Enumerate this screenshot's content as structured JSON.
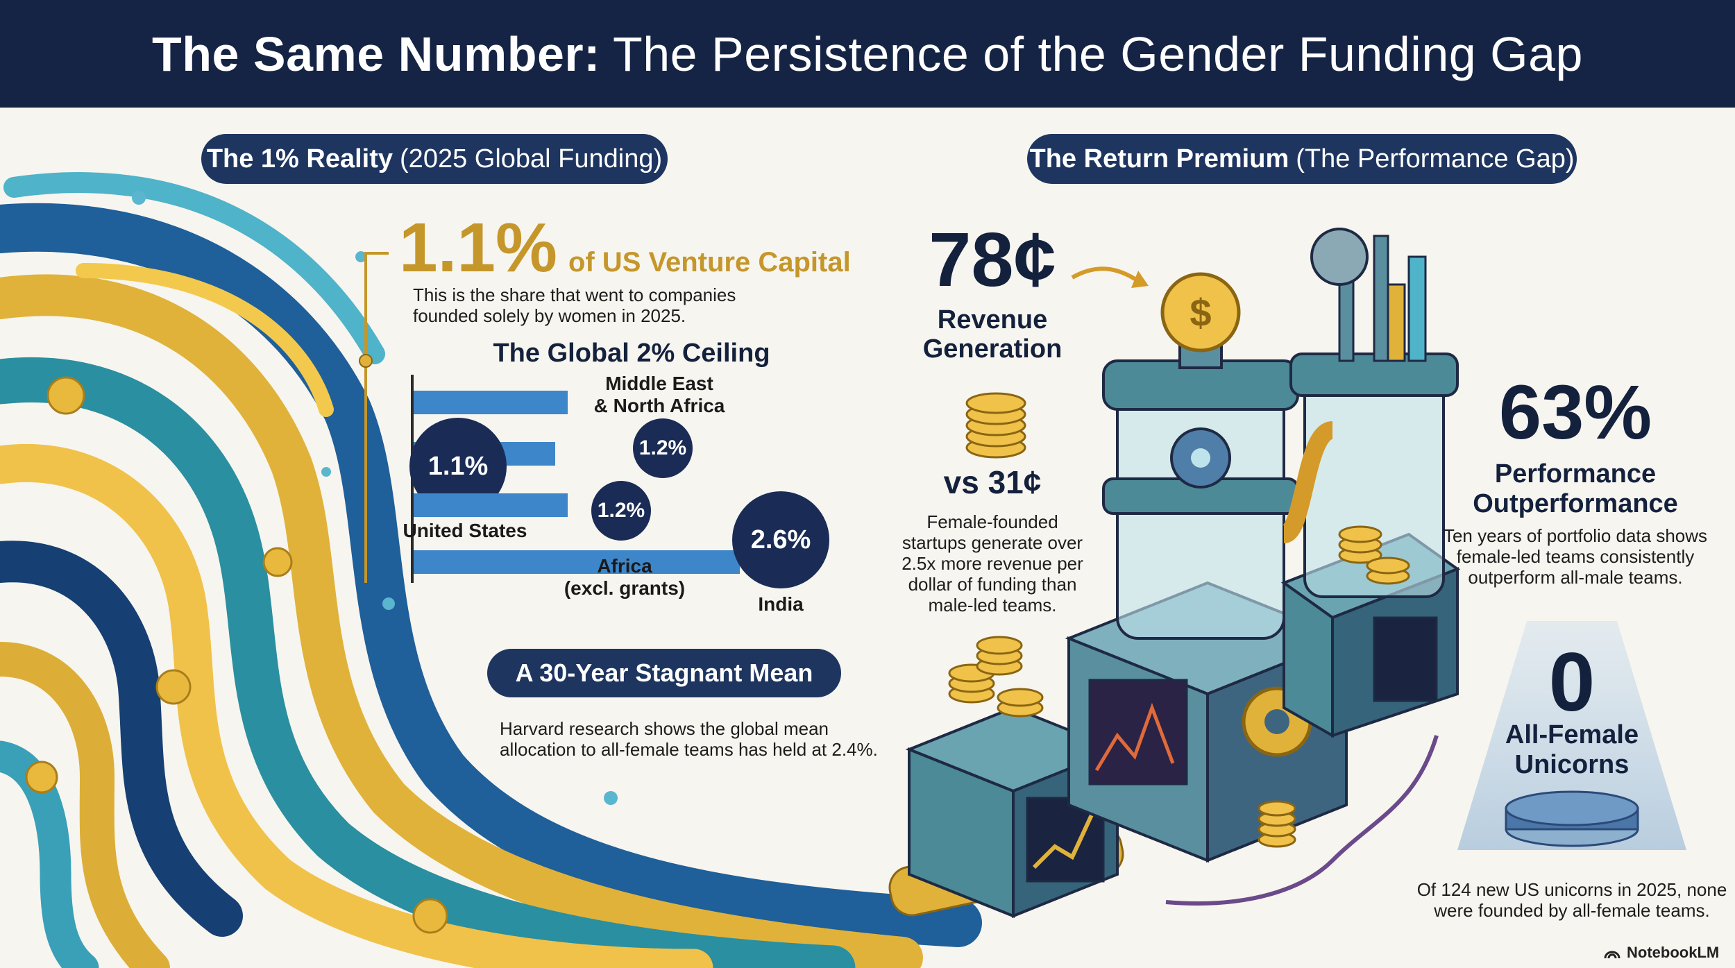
{
  "header": {
    "title_bold": "The Same Number:",
    "title_rest": "The Persistence of the Gender Funding Gap"
  },
  "left": {
    "pill_bold": "The 1% Reality",
    "pill_rest": "(2025 Global Funding)",
    "big_stat": "1.1%",
    "big_stat_label": "of US Venture Capital",
    "big_stat_desc_1": "This is the share that went to companies",
    "big_stat_desc_2": "founded solely by women in 2025.",
    "ceiling_title": "The Global 2% Ceiling",
    "mena_line1": "Middle East",
    "mena_line2": "& North Africa",
    "us_label": "United States",
    "africa_line1": "Africa",
    "africa_line2": "(excl. grants)",
    "india_label": "India",
    "mean_pill": "A 30-Year Stagnant Mean",
    "mean_desc_1": "Harvard research shows the global mean",
    "mean_desc_2": "allocation to all-female teams has held at 2.4%."
  },
  "chart_data": {
    "type": "bar",
    "title": "The Global 2% Ceiling",
    "categories": [
      "Middle East & North Africa",
      "United States",
      "Africa (excl. grants)",
      "India"
    ],
    "values": [
      1.2,
      1.1,
      1.2,
      2.6
    ],
    "value_labels": [
      "1.2%",
      "1.1%",
      "1.2%",
      "2.6%"
    ],
    "orientation": "horizontal",
    "bar_color": "#3d86c9",
    "bubble_color": "#1a2c55"
  },
  "right": {
    "pill_bold": "The Return Premium",
    "pill_rest": "(The Performance Gap)",
    "revenue_stat": "78¢",
    "revenue_label_1": "Revenue",
    "revenue_label_2": "Generation",
    "vs_stat": "vs 31¢",
    "revenue_desc": [
      "Female-founded",
      "startups generate over",
      "2.5x more revenue per",
      "dollar of funding than",
      "male-led teams."
    ],
    "perf_stat": "63%",
    "perf_label_1": "Performance",
    "perf_label_2": "Outperformance",
    "perf_desc": [
      "Ten years of portfolio data shows",
      "female-led teams consistently",
      "outperform all-male teams."
    ],
    "unicorn_stat": "0",
    "unicorn_label_1": "All-Female",
    "unicorn_label_2": "Unicorns",
    "unicorn_desc": [
      "Of 124 new US unicorns in 2025, none",
      "were founded by all-female teams."
    ]
  },
  "footer": {
    "brand": "NotebookLM"
  },
  "colors": {
    "navy": "#152444",
    "gold": "#c5962a",
    "blue": "#3d86c9",
    "teal": "#2a8fa0"
  }
}
